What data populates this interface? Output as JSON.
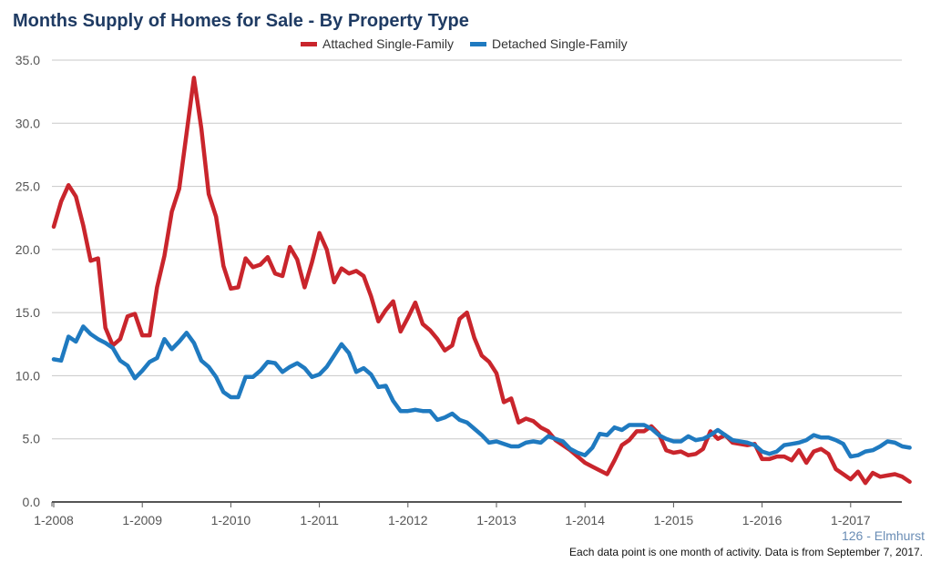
{
  "chart_data": {
    "type": "line",
    "title": "Months Supply of Homes for Sale - By Property Type",
    "xlabel": "",
    "ylabel": "",
    "ylim": [
      0,
      35
    ],
    "yticks": [
      "0.0",
      "5.0",
      "10.0",
      "15.0",
      "20.0",
      "25.0",
      "30.0",
      "35.0"
    ],
    "xtick_labels": [
      "1-2008",
      "1-2009",
      "1-2010",
      "1-2011",
      "1-2012",
      "1-2013",
      "1-2014",
      "1-2015",
      "1-2016",
      "1-2017"
    ],
    "x_start": "2008-01",
    "legend_position": "top-center",
    "grid": "horizontal",
    "series": [
      {
        "name": "Attached Single-Family",
        "color": "#c9252c",
        "values": [
          21.8,
          23.8,
          25.1,
          24.2,
          21.9,
          19.1,
          19.3,
          13.8,
          12.4,
          12.9,
          14.7,
          14.9,
          13.2,
          13.2,
          17.0,
          19.5,
          23.0,
          24.8,
          29.2,
          33.6,
          29.6,
          24.4,
          22.6,
          18.7,
          16.9,
          17.0,
          19.3,
          18.6,
          18.8,
          19.4,
          18.1,
          17.9,
          20.2,
          19.2,
          17.0,
          19.0,
          21.3,
          20.0,
          17.4,
          18.5,
          18.1,
          18.3,
          17.9,
          16.3,
          14.3,
          15.2,
          15.9,
          13.5,
          14.6,
          15.8,
          14.1,
          13.6,
          12.9,
          12.0,
          12.4,
          14.5,
          15.0,
          13.0,
          11.6,
          11.1,
          10.2,
          7.9,
          8.2,
          6.3,
          6.6,
          6.4,
          5.9,
          5.6,
          4.9,
          4.5,
          4.1,
          3.6,
          3.1,
          2.8,
          2.5,
          2.2,
          3.3,
          4.5,
          4.9,
          5.6,
          5.6,
          6.0,
          5.4,
          4.1,
          3.9,
          4.0,
          3.7,
          3.8,
          4.2,
          5.6,
          5.0,
          5.3,
          4.7,
          4.6,
          4.5,
          4.6,
          3.4,
          3.4,
          3.6,
          3.6,
          3.3,
          4.1,
          3.1,
          4.0,
          4.2,
          3.8,
          2.6,
          2.2,
          1.8,
          2.4,
          1.5,
          2.3,
          2.0,
          2.1,
          2.2,
          2.0,
          1.6
        ]
      },
      {
        "name": "Detached Single-Family",
        "color": "#1f7ac0",
        "values": [
          11.3,
          11.2,
          13.1,
          12.7,
          13.9,
          13.3,
          12.9,
          12.6,
          12.2,
          11.2,
          10.8,
          9.8,
          10.4,
          11.1,
          11.4,
          12.9,
          12.1,
          12.7,
          13.4,
          12.6,
          11.2,
          10.7,
          9.9,
          8.7,
          8.3,
          8.3,
          9.9,
          9.9,
          10.4,
          11.1,
          11.0,
          10.3,
          10.7,
          11.0,
          10.6,
          9.9,
          10.1,
          10.7,
          11.6,
          12.5,
          11.8,
          10.3,
          10.6,
          10.1,
          9.1,
          9.2,
          8.0,
          7.2,
          7.2,
          7.3,
          7.2,
          7.2,
          6.5,
          6.7,
          7.0,
          6.5,
          6.3,
          5.8,
          5.3,
          4.7,
          4.8,
          4.6,
          4.4,
          4.4,
          4.7,
          4.8,
          4.7,
          5.2,
          5.0,
          4.8,
          4.2,
          3.9,
          3.7,
          4.3,
          5.4,
          5.3,
          5.9,
          5.7,
          6.1,
          6.1,
          6.1,
          5.8,
          5.3,
          5.0,
          4.8,
          4.8,
          5.2,
          4.9,
          5.0,
          5.3,
          5.7,
          5.3,
          4.9,
          4.8,
          4.7,
          4.5,
          4.0,
          3.8,
          4.0,
          4.5,
          4.6,
          4.7,
          4.9,
          5.3,
          5.1,
          5.1,
          4.9,
          4.6,
          3.6,
          3.7,
          4.0,
          4.1,
          4.4,
          4.8,
          4.7,
          4.4,
          4.3
        ]
      }
    ]
  },
  "footer": {
    "subtitle": "126 - Elmhurst",
    "note": "Each data point is one month of activity. Data is from September 7, 2017."
  }
}
